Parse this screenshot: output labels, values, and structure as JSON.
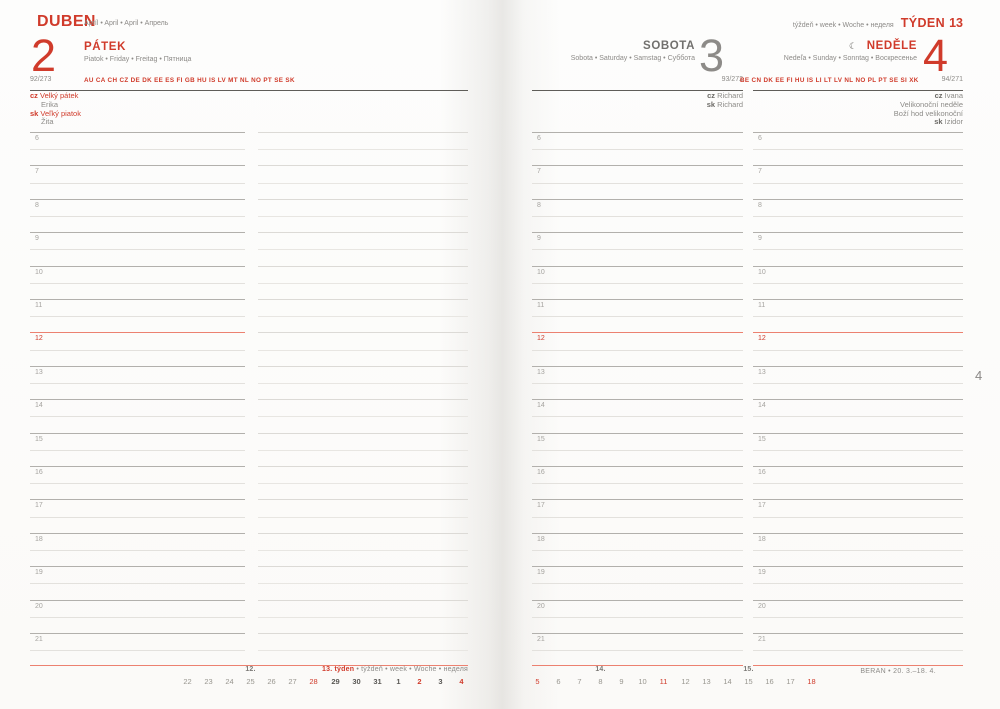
{
  "colors": {
    "red": "#d03b2b",
    "salmon": "#ec8170"
  },
  "top": {
    "month": "DUBEN",
    "month_langs": "Apríl • April • April • Апрель",
    "week_langs": "týždeň • week • Woche • неделя",
    "week_name": "TÝDEN",
    "week_number": "13"
  },
  "hours": [
    "6",
    "7",
    "8",
    "9",
    "10",
    "11",
    "12",
    "13",
    "14",
    "15",
    "16",
    "17",
    "18",
    "19",
    "20",
    "21"
  ],
  "noon_hour": "12",
  "friday": {
    "day_number": "2",
    "day_name": "PÁTEK",
    "day_langs": "Piatok • Friday • Freitag • Пятница",
    "day_of_year": "92/273",
    "codes": "AU CA CH CZ DE DK EE ES FI GB HU IS LV MT NL NO PT SE SK",
    "entries": [
      {
        "prefix": "cz",
        "text": "Velký pátek",
        "color": "red"
      },
      {
        "prefix": "",
        "text": "Erika",
        "color": "gray",
        "indent": true
      },
      {
        "prefix": "sk",
        "text": "Veľký piatok",
        "color": "red"
      },
      {
        "prefix": "",
        "text": "Žita",
        "color": "gray",
        "indent": true
      }
    ]
  },
  "saturday": {
    "day_number": "3",
    "day_name": "SOBOTA",
    "day_langs": "Sobota • Saturday • Samstag • Суббота",
    "day_of_year": "93/272",
    "entries": [
      {
        "prefix": "cz",
        "text": "Richard",
        "color": "gray"
      },
      {
        "prefix": "sk",
        "text": "Richard",
        "color": "gray"
      }
    ]
  },
  "sunday": {
    "day_number": "4",
    "day_name": "NEDĚLE",
    "moon_symbol": "☾",
    "day_langs": "Nedeľa • Sunday • Sonntag • Воскресенье",
    "day_of_year": "94/271",
    "codes": "BE CN DK EE FI HU IS LI LT LV NL NO PL PT SE SI XK",
    "entries": [
      {
        "prefix": "cz",
        "text": "Ivana",
        "color": "gray"
      },
      {
        "prefix": "",
        "text": "Velikonoční neděle",
        "color": "gray"
      },
      {
        "prefix": "",
        "text": "Boží hod velikonoční",
        "color": "gray"
      },
      {
        "prefix": "sk",
        "text": "Izidor",
        "color": "gray"
      }
    ]
  },
  "mini_calendar": {
    "left": [
      {
        "label": "12.",
        "days": [
          {
            "d": "22"
          },
          {
            "d": "23"
          },
          {
            "d": "24"
          },
          {
            "d": "25"
          },
          {
            "d": "26"
          },
          {
            "d": "27"
          },
          {
            "d": "28",
            "red": true
          }
        ]
      },
      {
        "label": "13. týden",
        "label_rest": "• týždeň • week • Woche • неделя",
        "days": [
          {
            "d": "29",
            "bold": true
          },
          {
            "d": "30",
            "bold": true
          },
          {
            "d": "31",
            "bold": true
          },
          {
            "d": "1",
            "bold": true
          },
          {
            "d": "2",
            "red": true,
            "bold": true
          },
          {
            "d": "3",
            "bold": true
          },
          {
            "d": "4",
            "red": true,
            "bold": true
          }
        ]
      }
    ],
    "right": [
      {
        "label": "14.",
        "days": [
          {
            "d": "5",
            "red": true
          },
          {
            "d": "6"
          },
          {
            "d": "7"
          },
          {
            "d": "8"
          },
          {
            "d": "9"
          },
          {
            "d": "10"
          },
          {
            "d": "11",
            "red": true
          }
        ]
      },
      {
        "label": "15.",
        "days": [
          {
            "d": "12"
          },
          {
            "d": "13"
          },
          {
            "d": "14"
          },
          {
            "d": "15"
          },
          {
            "d": "16"
          },
          {
            "d": "17"
          },
          {
            "d": "18",
            "red": true
          }
        ]
      }
    ],
    "zodiac": "BERAN • 20. 3.–18. 4."
  },
  "month_tab": "4"
}
